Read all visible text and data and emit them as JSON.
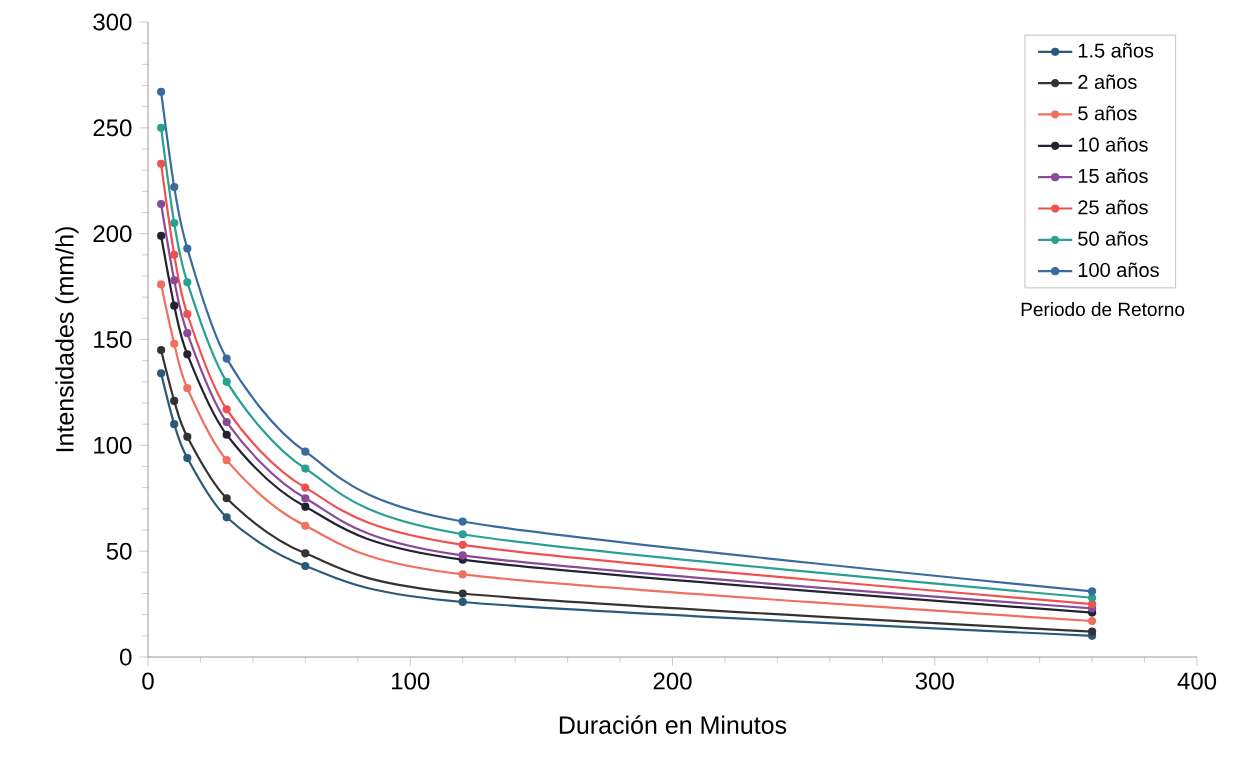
{
  "chart_data": {
    "type": "line",
    "xlabel": "Duración en Minutos",
    "ylabel": "Intensidades (mm/h)",
    "legend_title": "Periodo de Retorno",
    "x": [
      5,
      10,
      15,
      30,
      60,
      120,
      360
    ],
    "xlim": [
      0,
      400
    ],
    "ylim": [
      0,
      300
    ],
    "xticks": [
      0,
      100,
      200,
      300,
      400
    ],
    "yticks": [
      0,
      50,
      100,
      150,
      200,
      250,
      300
    ],
    "grid": false,
    "legend": "top right",
    "marker": "circle",
    "line_style": "solid",
    "series": [
      {
        "name": "1.5 años",
        "color": "#2a5a7a",
        "values": [
          134,
          110,
          94,
          66,
          43,
          26,
          10
        ]
      },
      {
        "name": "2 años",
        "color": "#333333",
        "values": [
          145,
          121,
          104,
          75,
          49,
          30,
          12
        ]
      },
      {
        "name": "5 años",
        "color": "#f07060",
        "values": [
          176,
          148,
          127,
          93,
          62,
          39,
          17
        ]
      },
      {
        "name": "10 años",
        "color": "#222233",
        "values": [
          199,
          166,
          143,
          105,
          71,
          46,
          21
        ]
      },
      {
        "name": "15 años",
        "color": "#8a4a9a",
        "values": [
          214,
          178,
          153,
          111,
          75,
          48,
          23
        ]
      },
      {
        "name": "25 años",
        "color": "#f05050",
        "values": [
          233,
          190,
          162,
          117,
          80,
          53,
          25
        ]
      },
      {
        "name": "50 años",
        "color": "#2aa090",
        "values": [
          250,
          205,
          177,
          130,
          89,
          58,
          28
        ]
      },
      {
        "name": "100 años",
        "color": "#3a6aa0",
        "values": [
          267,
          222,
          193,
          141,
          97,
          64,
          31
        ]
      }
    ]
  }
}
